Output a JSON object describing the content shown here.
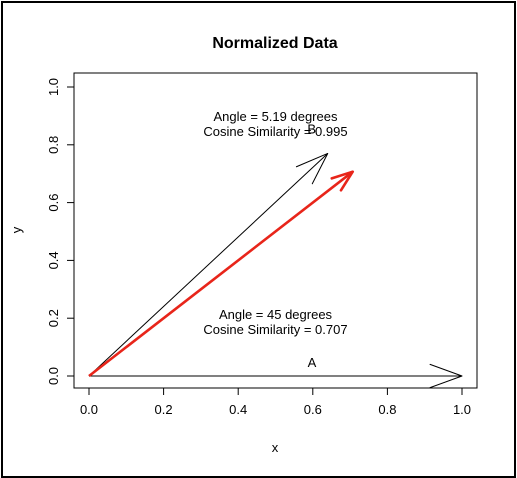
{
  "chart_data": {
    "type": "vector-plot",
    "title": "Normalized Data",
    "xlabel": "x",
    "ylabel": "y",
    "xlim": [
      0.0,
      1.0
    ],
    "ylim": [
      0.0,
      1.0
    ],
    "xticks": [
      "0.0",
      "0.2",
      "0.4",
      "0.6",
      "0.8",
      "1.0"
    ],
    "yticks": [
      "0.0",
      "0.2",
      "0.4",
      "0.6",
      "0.8",
      "1.0"
    ],
    "grid": false,
    "vectors": [
      {
        "label": "A",
        "from": [
          0,
          0
        ],
        "to": [
          1.0,
          0.0
        ],
        "color": "#000000"
      },
      {
        "label": "B",
        "from": [
          0,
          0
        ],
        "to": [
          0.64,
          0.77
        ],
        "color": "#000000"
      },
      {
        "label": "",
        "from": [
          0,
          0
        ],
        "to": [
          0.707,
          0.707
        ],
        "color": "#e8251a"
      }
    ],
    "annotations": [
      {
        "lines": [
          "Angle = 5.19 degrees",
          "Cosine Similarity = 0.995"
        ],
        "x": 0.5,
        "y": 0.87
      },
      {
        "lines": [
          "Angle = 45 degrees",
          "Cosine Similarity = 0.707"
        ],
        "x": 0.5,
        "y": 0.185
      }
    ]
  }
}
